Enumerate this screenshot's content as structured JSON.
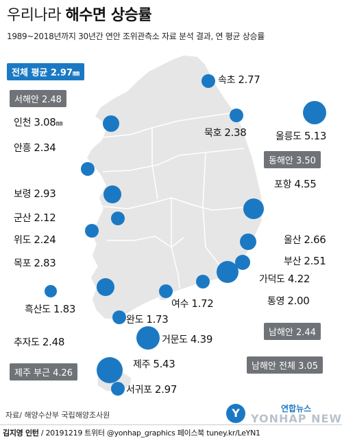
{
  "title": {
    "light": "우리나라 ",
    "bold": "해수면 상승률"
  },
  "subtitle": "1989~2018년까지 30년간 연안 조위관측소 자료 분석 결과, 연 평균 상승률",
  "summary": {
    "national": "전체 평균 2.97",
    "national_unit": "㎜",
    "west": "서해안 2.48",
    "east": "동해안 3.50",
    "south": "남해안 2.44",
    "south_total": "남해안 전체 3.05",
    "jeju": "제주 부근 4.26"
  },
  "map_data": {
    "stations": [
      {
        "name": "속초",
        "value": "2.77",
        "rate": 2.77
      },
      {
        "name": "묵호",
        "value": "2.38",
        "rate": 2.38
      },
      {
        "name": "울릉도",
        "value": "5.13",
        "rate": 5.13
      },
      {
        "name": "인천",
        "value": "3.08",
        "unit": "㎜",
        "rate": 3.08
      },
      {
        "name": "안흥",
        "value": "2.34",
        "rate": 2.34
      },
      {
        "name": "보령",
        "value": "2.93",
        "rate": 2.93
      },
      {
        "name": "군산",
        "value": "2.12",
        "rate": 2.12
      },
      {
        "name": "위도",
        "value": "2.24",
        "rate": 2.24
      },
      {
        "name": "포항",
        "value": "4.55",
        "rate": 4.55
      },
      {
        "name": "울산",
        "value": "2.66",
        "rate": 2.66
      },
      {
        "name": "부산",
        "value": "2.51",
        "rate": 2.51
      },
      {
        "name": "가덕도",
        "value": "4.22",
        "rate": 4.22
      },
      {
        "name": "통영",
        "value": "2.00",
        "rate": 2.0
      },
      {
        "name": "목포",
        "value": "2.83",
        "rate": 2.83
      },
      {
        "name": "흑산도",
        "value": "1.83",
        "rate": 1.83
      },
      {
        "name": "여수",
        "value": "1.72",
        "rate": 1.72
      },
      {
        "name": "완도",
        "value": "1.73",
        "rate": 1.73
      },
      {
        "name": "거문도",
        "value": "4.39",
        "rate": 4.39
      },
      {
        "name": "추자도",
        "value": "2.48",
        "rate": 2.48
      },
      {
        "name": "제주",
        "value": "5.43",
        "rate": 5.43
      },
      {
        "name": "서귀포",
        "value": "2.97",
        "rate": 2.97
      }
    ]
  },
  "colors": {
    "accent": "#1b79c4",
    "land": "#e6e6e6",
    "border": "#ffffff",
    "badge_gray": "#6f7378"
  },
  "source": "자료/ 해양수산부 국립해양조사원",
  "credit": {
    "author": "김지영 인턴",
    "rest": " / 20191219 트위터 @yonhap_graphics  페이스북 tuney.kr/LeYN1"
  },
  "logo": {
    "kr": "연합뉴스",
    "en": "YONHAP NEWS",
    "mark": "Y"
  }
}
